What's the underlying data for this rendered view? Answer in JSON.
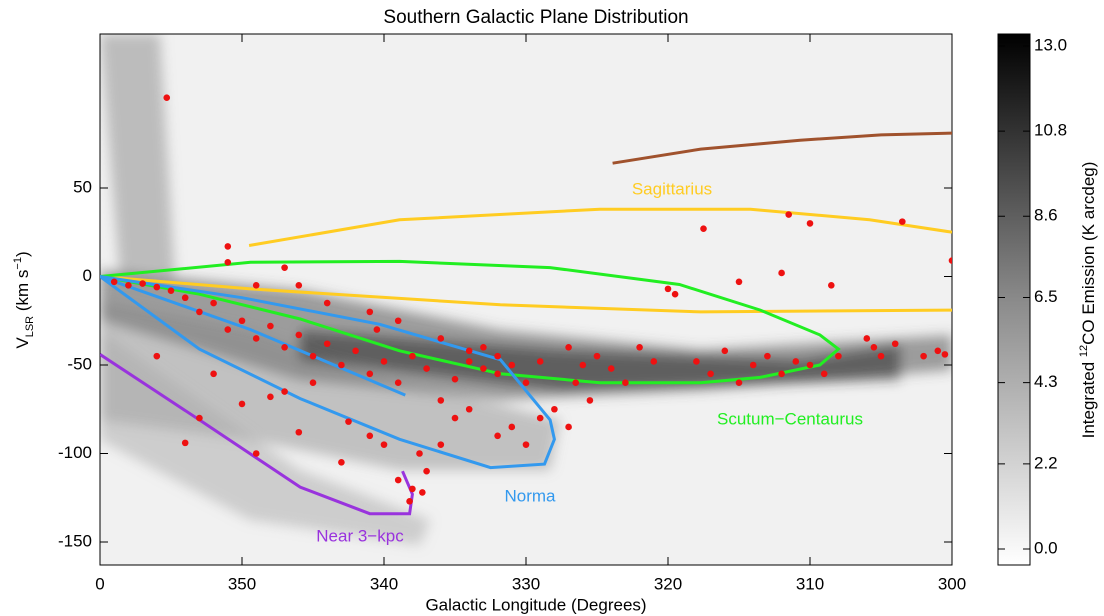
{
  "chart_data": {
    "type": "scatter",
    "title": "Southern Galactic Plane Distribution",
    "xlabel": "Galactic Longitude (Degrees)",
    "ylabel": [
      "V",
      "LSR",
      " (km s",
      "−1",
      ")"
    ],
    "xlim": [
      360,
      300
    ],
    "ylim": [
      -163,
      137
    ],
    "xticks": [
      {
        "value": 360,
        "label": "0"
      },
      350,
      340,
      330,
      320,
      310,
      300
    ],
    "yticks": [
      50,
      0,
      -50,
      -100,
      -150
    ],
    "colorbar": {
      "label": [
        "Integrated ",
        "12",
        "CO Emission (K arcdeg)"
      ],
      "ticks": [
        {
          "value": 0,
          "label": "0.0"
        },
        2.2,
        4.3,
        6.5,
        8.6,
        10.8,
        {
          "value": 13,
          "label": "13.0"
        }
      ]
    },
    "points": {
      "color": "#ee1111",
      "x": [
        355.3,
        351,
        351,
        359,
        358,
        357,
        356,
        355,
        354,
        353,
        352,
        351,
        350,
        349,
        348,
        347,
        346,
        345,
        344,
        343,
        342,
        341,
        340,
        339,
        338,
        337,
        336,
        335,
        334,
        333,
        332,
        331,
        330,
        329,
        328,
        327,
        326,
        325,
        324,
        323,
        322,
        321,
        320,
        319.5,
        318,
        317,
        316,
        315,
        314,
        313,
        312,
        311,
        310,
        309,
        308,
        306,
        305.5,
        305,
        304,
        302,
        301,
        300.5,
        300,
        303.5,
        311.5,
        310,
        317.5,
        312,
        308.5,
        315,
        342.5,
        338,
        339,
        337,
        340,
        332,
        331,
        330,
        329,
        345,
        348,
        352,
        350,
        346,
        356,
        353,
        354,
        349,
        347,
        337.5,
        336,
        335,
        334,
        343,
        341,
        349,
        347,
        346,
        344,
        341,
        339,
        327,
        326.5,
        325.5,
        338.2,
        337.3,
        340.5,
        336,
        334,
        333,
        332
      ],
      "y": [
        101,
        8,
        17,
        -3,
        -5,
        -4,
        -6,
        -8,
        -12,
        -20,
        -15,
        -30,
        -25,
        -35,
        -28,
        -40,
        -33,
        -45,
        -38,
        -50,
        -42,
        -55,
        -48,
        -60,
        -45,
        -52,
        -70,
        -58,
        -48,
        -52,
        -55,
        -50,
        -60,
        -48,
        -75,
        -85,
        -50,
        -45,
        -52,
        -60,
        -40,
        -48,
        -7,
        -10,
        -48,
        -55,
        -42,
        -60,
        -50,
        -45,
        -55,
        -48,
        -50,
        -55,
        -45,
        -35,
        -40,
        -45,
        -38,
        -45,
        -42,
        -44,
        9,
        31,
        35,
        30,
        27,
        2,
        -5,
        -3,
        -82,
        -120,
        -115,
        -110,
        -95,
        -90,
        -85,
        -95,
        -80,
        -60,
        -68,
        -55,
        -72,
        -88,
        -45,
        -80,
        -94,
        -100,
        -65,
        -100,
        -95,
        -80,
        -75,
        -105,
        -90,
        -5,
        5,
        -5,
        -15,
        -20,
        -25,
        -40,
        -60,
        -70,
        -127,
        -122,
        -30,
        -35,
        -42,
        -40,
        -45
      ]
    },
    "arms": [
      {
        "color": "#a0522d",
        "x": [
          323.9,
          317.7,
          310.7,
          305,
          300
        ],
        "y": [
          64,
          72,
          77,
          80,
          81
        ]
      },
      {
        "label": "Sagittarius",
        "color": "#ffcc22",
        "x": [
          349.5,
          338.9,
          324.8,
          314.2,
          305.8,
          300
        ],
        "y": [
          17.5,
          32,
          38,
          38,
          32,
          25
        ]
      },
      {
        "color": "#ffcc22",
        "x": [
          360,
          349.4,
          331.8,
          317.7,
          300
        ],
        "y": [
          0,
          -7,
          -16,
          -20,
          -19
        ]
      },
      {
        "label": "Scutum−Centaurus",
        "color": "#22ee22",
        "x": [
          360,
          349.4,
          338.9,
          328.3,
          319.2,
          313.5,
          309.3,
          308,
          309.3,
          313.5,
          317.7,
          324.8,
          331.8,
          338.9,
          345.9,
          353,
          360
        ],
        "y": [
          0,
          8,
          8.5,
          5,
          -4.5,
          -19,
          -33,
          -41,
          -50,
          -57,
          -60,
          -60,
          -55,
          -42,
          -24,
          -10,
          0
        ]
      },
      {
        "label": "Norma",
        "color": "#3399ee",
        "x": [
          360,
          350,
          340.3,
          331.8,
          328.3,
          328,
          328.7,
          332.5,
          338.9,
          345.9,
          353,
          360
        ],
        "y": [
          0,
          -12,
          -27,
          -47,
          -81,
          -92,
          -106,
          -108,
          -92,
          -69,
          -41,
          0
        ]
      },
      {
        "color": "#3399ee",
        "x": [
          360,
          349.4,
          338.5
        ],
        "y": [
          0,
          -30,
          -67
        ]
      },
      {
        "label": "Near 3−kpc",
        "color": "#9933dd",
        "x": [
          360,
          353,
          345.9,
          341,
          338.2,
          338,
          338.7
        ],
        "y": [
          -44,
          -81,
          -119,
          -134,
          -134,
          -123,
          -110
        ]
      }
    ]
  }
}
